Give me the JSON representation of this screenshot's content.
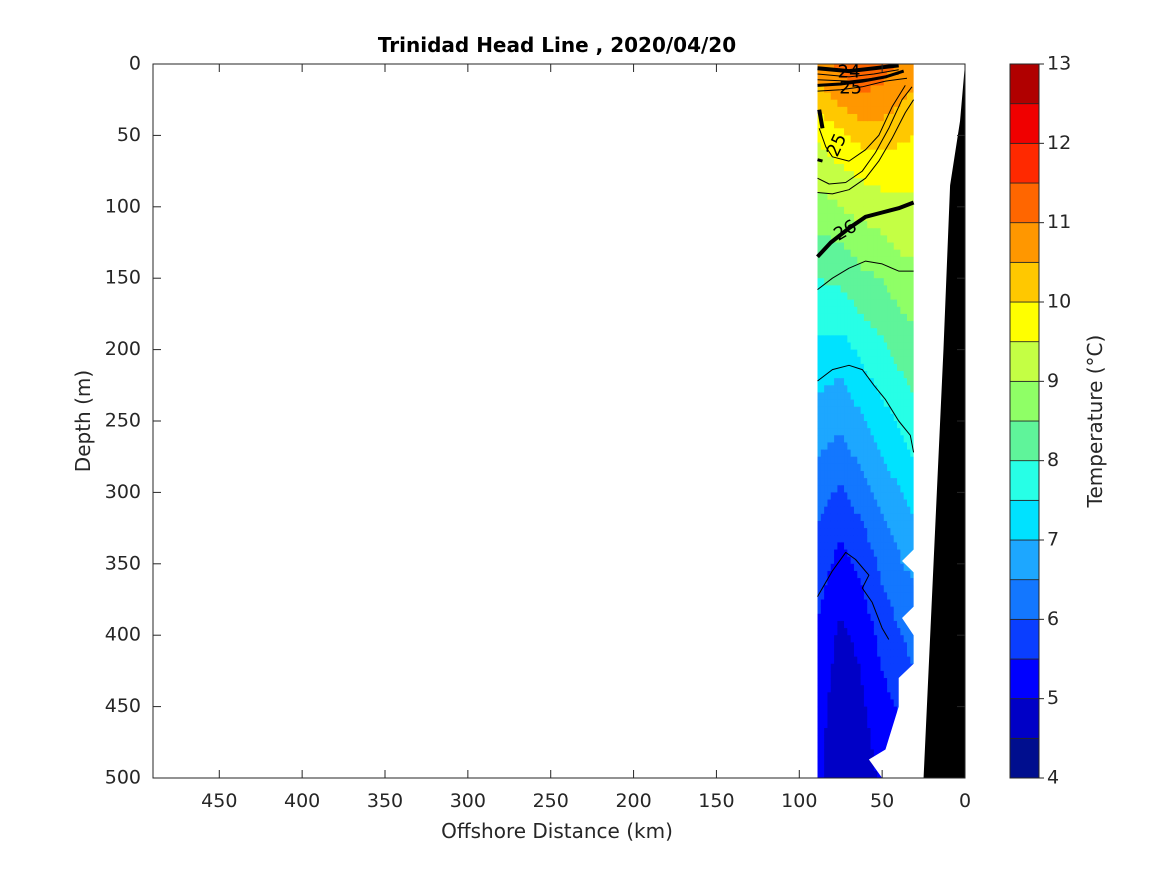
{
  "chart_data": {
    "type": "heatmap",
    "title": "Trinidad Head Line , 2020/04/20",
    "xlabel": "Offshore Distance (km)",
    "ylabel": "Depth (m)",
    "xlim": [
      490,
      0
    ],
    "ylim": [
      500,
      0
    ],
    "x_reversed": true,
    "y_reversed": true,
    "x_ticks": [
      450,
      400,
      350,
      300,
      250,
      200,
      150,
      100,
      50,
      0
    ],
    "y_ticks": [
      0,
      50,
      100,
      150,
      200,
      250,
      300,
      350,
      400,
      450,
      500
    ],
    "colorbar": {
      "label": "Temperature (°C)",
      "range": [
        4,
        13
      ],
      "ticks": [
        4,
        5,
        6,
        7,
        8,
        9,
        10,
        11,
        12,
        13
      ],
      "step": 0.5,
      "colors": [
        "#000e8e",
        "#0000c6",
        "#0000ff",
        "#0a3eff",
        "#1377ff",
        "#1da7ff",
        "#00e2ff",
        "#27ffe6",
        "#5ff49a",
        "#8fff66",
        "#c4ff44",
        "#ffff00",
        "#ffc800",
        "#ff9700",
        "#ff6600",
        "#ff2900",
        "#f00000",
        "#b00000"
      ]
    },
    "sampled_range_km": [
      89,
      31
    ],
    "contour_labels": [
      {
        "text": "24",
        "x": 70,
        "y": 6
      },
      {
        "text": "25",
        "x": 69,
        "y": 17
      },
      {
        "text": "25",
        "x": 77,
        "y": 57
      },
      {
        "text": "26",
        "x": 72,
        "y": 117
      }
    ],
    "temperature_profiles": [
      {
        "x": 89,
        "t": [
          10.8,
          10.2,
          9.6,
          9.2,
          8.8,
          8.4,
          8.0,
          7.7,
          7.4,
          7.1,
          6.8,
          6.5,
          6.2,
          6.0,
          5.8,
          5.6,
          5.4,
          5.3,
          5.2,
          5.2,
          5.1
        ]
      },
      {
        "x": 75,
        "t": [
          11.2,
          10.6,
          9.9,
          9.4,
          9.0,
          8.5,
          8.1,
          7.7,
          7.3,
          6.9,
          6.6,
          6.3,
          5.9,
          5.6,
          5.3,
          5.1,
          4.9,
          4.8,
          4.7,
          4.6,
          4.6
        ]
      },
      {
        "x": 63,
        "t": [
          11.4,
          10.9,
          10.2,
          9.6,
          9.2,
          8.7,
          8.4,
          8.0,
          7.6,
          7.3,
          6.9,
          6.6,
          6.3,
          5.9,
          5.6,
          5.4,
          5.1,
          5.0,
          4.9,
          4.8,
          4.7
        ]
      },
      {
        "x": 50,
        "t": [
          11.2,
          10.8,
          10.2,
          9.7,
          9.3,
          8.9,
          8.5,
          8.2,
          7.9,
          7.6,
          7.3,
          7.0,
          6.7,
          6.4,
          6.1,
          5.9,
          5.7,
          5.5,
          5.3,
          5.2,
          5.1
        ]
      },
      {
        "x": 38,
        "t": [
          10.9,
          10.5,
          10.1,
          9.7,
          9.4,
          9.1,
          8.8,
          8.5,
          8.2,
          7.9,
          7.6,
          7.3,
          7.0,
          6.7,
          6.5,
          6.2,
          6.0,
          5.8,
          5.6,
          5.4,
          5.3
        ]
      },
      {
        "x": 31,
        "t": [
          10.7,
          10.4,
          10.0,
          9.7,
          9.4,
          9.1,
          8.9,
          8.6,
          8.3,
          8.1,
          7.8,
          7.5,
          7.2,
          6.9,
          6.6,
          6.4,
          6.2,
          6.0,
          5.8,
          5.6,
          5.5
        ]
      }
    ],
    "profile_depths": [
      0,
      25,
      50,
      75,
      100,
      125,
      150,
      175,
      200,
      225,
      250,
      275,
      300,
      325,
      350,
      375,
      400,
      425,
      450,
      475,
      500
    ],
    "data_mask_east_edge": [
      {
        "y": 0,
        "x": 31
      },
      {
        "y": 340,
        "x": 31
      },
      {
        "y": 348,
        "x": 38
      },
      {
        "y": 356,
        "x": 31
      },
      {
        "y": 380,
        "x": 31
      },
      {
        "y": 388,
        "x": 38
      },
      {
        "y": 400,
        "x": 31
      },
      {
        "y": 420,
        "x": 31
      },
      {
        "y": 430,
        "x": 40
      },
      {
        "y": 450,
        "x": 40
      },
      {
        "y": 480,
        "x": 48
      },
      {
        "y": 487,
        "x": 58
      },
      {
        "y": 500,
        "x": 50
      }
    ],
    "bathymetry": [
      {
        "x": 0,
        "y": 0
      },
      {
        "x": 3,
        "y": 40
      },
      {
        "x": 9,
        "y": 85
      },
      {
        "x": 13,
        "y": 200
      },
      {
        "x": 17,
        "y": 300
      },
      {
        "x": 21,
        "y": 400
      },
      {
        "x": 25,
        "y": 500
      }
    ]
  }
}
